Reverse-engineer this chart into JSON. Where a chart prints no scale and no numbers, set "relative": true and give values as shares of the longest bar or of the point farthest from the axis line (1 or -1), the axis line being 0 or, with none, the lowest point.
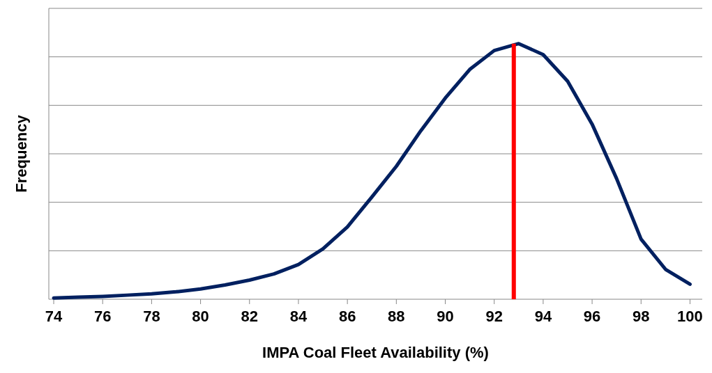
{
  "chart_data": {
    "type": "line",
    "relative": true,
    "xlabel": "IMPA Coal Fleet Availability (%)",
    "ylabel": "Frequency",
    "x": [
      74,
      75,
      76,
      77,
      78,
      79,
      80,
      81,
      82,
      83,
      84,
      85,
      86,
      87,
      88,
      89,
      90,
      91,
      92,
      93,
      94,
      95,
      96,
      97,
      98,
      99,
      100
    ],
    "series": [
      {
        "color": "#002060",
        "values": [
          0.005,
          0.008,
          0.011,
          0.016,
          0.021,
          0.029,
          0.04,
          0.056,
          0.075,
          0.099,
          0.136,
          0.197,
          0.283,
          0.4,
          0.52,
          0.659,
          0.787,
          0.899,
          0.973,
          1,
          0.957,
          0.853,
          0.685,
          0.472,
          0.235,
          0.117,
          0.059
        ]
      }
    ],
    "xlim": [
      73.8,
      100.5
    ],
    "xticks": [
      74,
      76,
      78,
      80,
      82,
      84,
      86,
      88,
      90,
      92,
      94,
      96,
      98,
      100
    ],
    "grid": true,
    "marker": "none",
    "line_style": "solid",
    "ref_lines": [
      {
        "axis": "x",
        "value": 92.8,
        "color": "#ff0000"
      }
    ]
  }
}
